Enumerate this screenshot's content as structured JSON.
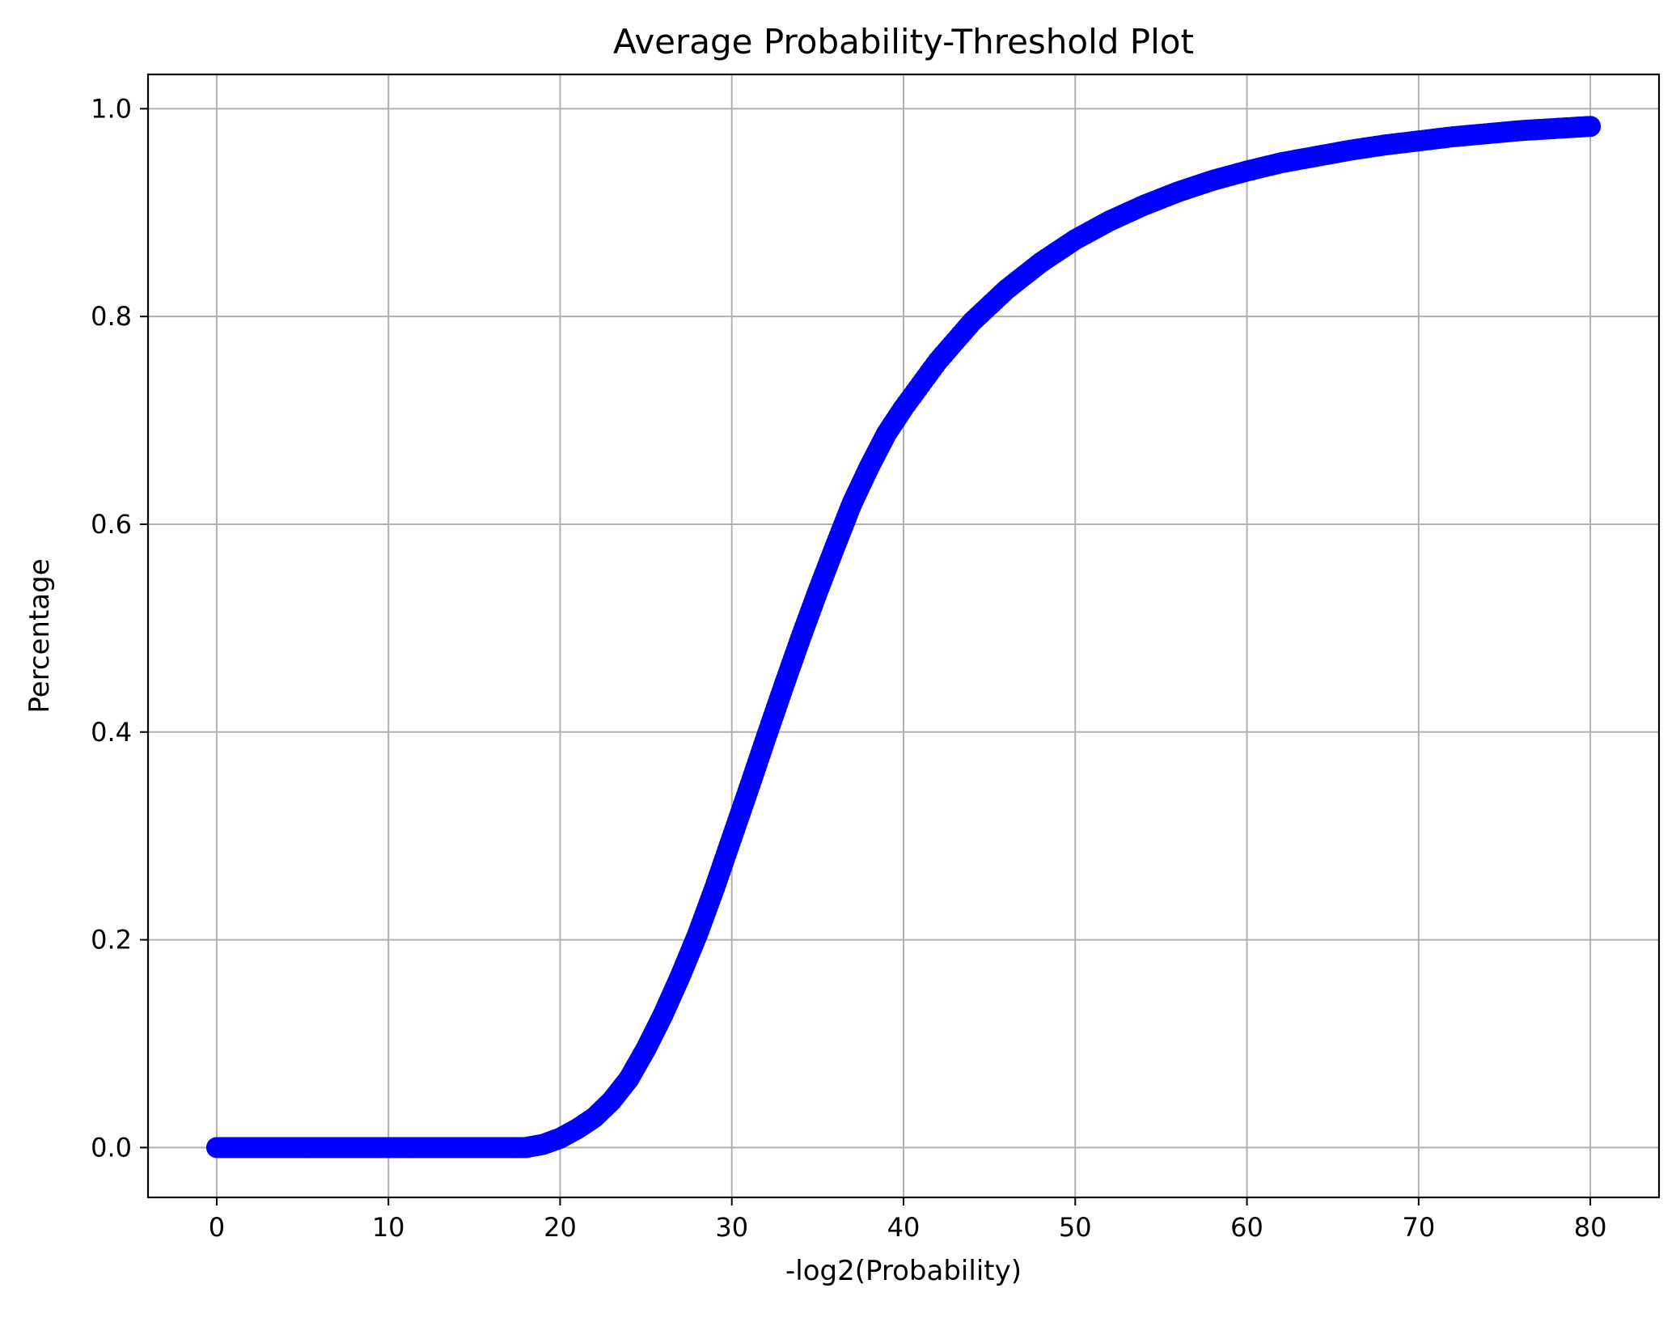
{
  "chart_data": {
    "type": "scatter",
    "title": "Average Probability-Threshold Plot",
    "xlabel": "-log2(Probability)",
    "ylabel": "Percentage",
    "xlim": [
      -4,
      84
    ],
    "ylim": [
      -0.048,
      1.033
    ],
    "xticks": [
      0,
      10,
      20,
      30,
      40,
      50,
      60,
      70,
      80
    ],
    "yticks": [
      0.0,
      0.2,
      0.4,
      0.6,
      0.8,
      1.0
    ],
    "xtick_labels": [
      "0",
      "10",
      "20",
      "30",
      "40",
      "50",
      "60",
      "70",
      "80"
    ],
    "ytick_labels": [
      "0.0",
      "0.2",
      "0.4",
      "0.6",
      "0.8",
      "1.0"
    ],
    "grid": true,
    "series": [
      {
        "color": "#0000ff",
        "marker": "circle",
        "x": [
          0,
          2,
          4,
          6,
          8,
          10,
          12,
          14,
          16,
          18,
          19,
          20,
          21,
          22,
          23,
          24,
          25,
          26,
          27,
          28,
          29,
          30,
          31,
          32,
          33,
          34,
          35,
          36,
          37,
          38,
          39,
          40,
          42,
          44,
          46,
          48,
          50,
          52,
          54,
          56,
          58,
          60,
          62,
          64,
          66,
          68,
          70,
          72,
          74,
          76,
          78,
          80
        ],
        "y": [
          0.0,
          0.0,
          0.0,
          0.0,
          0.0,
          0.0,
          0.0,
          0.0,
          0.0,
          0.0,
          0.003,
          0.009,
          0.018,
          0.029,
          0.045,
          0.066,
          0.095,
          0.128,
          0.165,
          0.205,
          0.25,
          0.298,
          0.346,
          0.395,
          0.443,
          0.49,
          0.535,
          0.578,
          0.62,
          0.655,
          0.687,
          0.712,
          0.757,
          0.795,
          0.826,
          0.852,
          0.874,
          0.892,
          0.907,
          0.92,
          0.931,
          0.94,
          0.948,
          0.954,
          0.96,
          0.965,
          0.969,
          0.973,
          0.976,
          0.979,
          0.981,
          0.983
        ]
      }
    ]
  }
}
